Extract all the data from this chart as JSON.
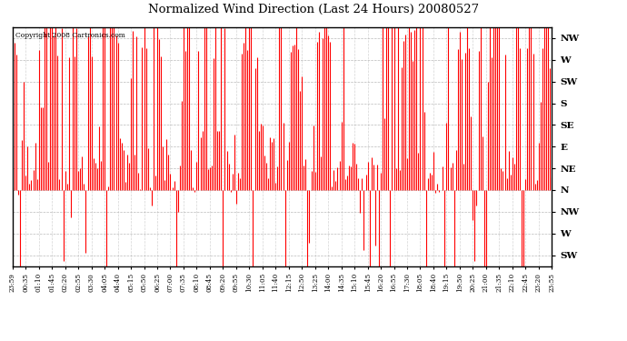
{
  "title": "Normalized Wind Direction (Last 24 Hours) 20080527",
  "copyright_text": "Copyright 2008 Cartronics.com",
  "line_color": "#FF0000",
  "fill_color": "#FF0000",
  "bg_color": "#FFFFFF",
  "grid_color": "#AAAAAA",
  "ytick_labels": [
    "NW",
    "W",
    "SW",
    "S",
    "SE",
    "E",
    "NE",
    "N",
    "NW",
    "W",
    "SW"
  ],
  "ytick_values": [
    10,
    9,
    8,
    7,
    6,
    5,
    4,
    3,
    2,
    1,
    0
  ],
  "ymin": -0.5,
  "ymax": 10.5,
  "baseline": 3,
  "xtick_labels": [
    "23:59",
    "00:35",
    "01:10",
    "01:45",
    "02:20",
    "02:55",
    "03:30",
    "04:05",
    "04:40",
    "05:15",
    "05:50",
    "06:25",
    "07:00",
    "07:35",
    "08:10",
    "08:45",
    "09:20",
    "09:55",
    "10:30",
    "11:05",
    "11:40",
    "12:15",
    "12:50",
    "13:25",
    "14:00",
    "14:35",
    "15:10",
    "15:45",
    "16:20",
    "16:55",
    "17:30",
    "18:05",
    "18:40",
    "19:15",
    "19:50",
    "20:25",
    "21:00",
    "21:35",
    "22:10",
    "22:45",
    "23:20",
    "23:55"
  ],
  "figwidth": 6.9,
  "figheight": 3.75,
  "dpi": 100
}
